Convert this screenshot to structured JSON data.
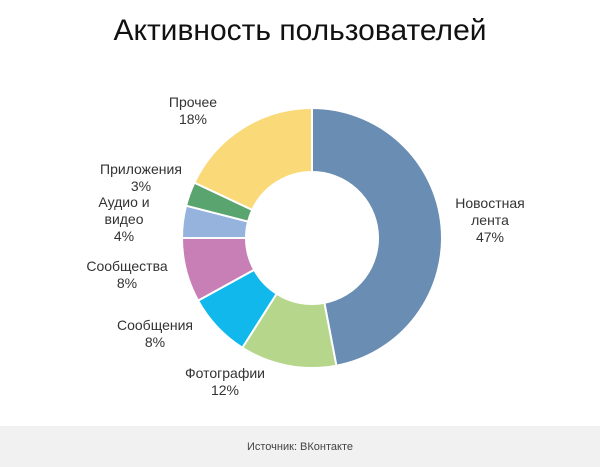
{
  "chart_data": {
    "type": "pie",
    "title": "Активность пользователей",
    "slices": [
      {
        "label": [
          "Новостная",
          "лента",
          "47%"
        ],
        "value": 47,
        "color": "#6a8db3"
      },
      {
        "label": [
          "Фотографии",
          "12%"
        ],
        "value": 12,
        "color": "#b5d68b"
      },
      {
        "label": [
          "Сообщения",
          "8%"
        ],
        "value": 8,
        "color": "#11b8ec"
      },
      {
        "label": [
          "Сообщества",
          "8%"
        ],
        "value": 8,
        "color": "#c77fb6"
      },
      {
        "label": [
          "Аудио и",
          "видео",
          "4%"
        ],
        "value": 4,
        "color": "#95b3dc"
      },
      {
        "label": [
          "Приложения",
          "3%"
        ],
        "value": 3,
        "color": "#5aa56f"
      },
      {
        "label": [
          "Прочее",
          "18%"
        ],
        "value": 18,
        "color": "#fad978"
      }
    ]
  },
  "footer": {
    "source": "Источник: ВКонтакте"
  }
}
